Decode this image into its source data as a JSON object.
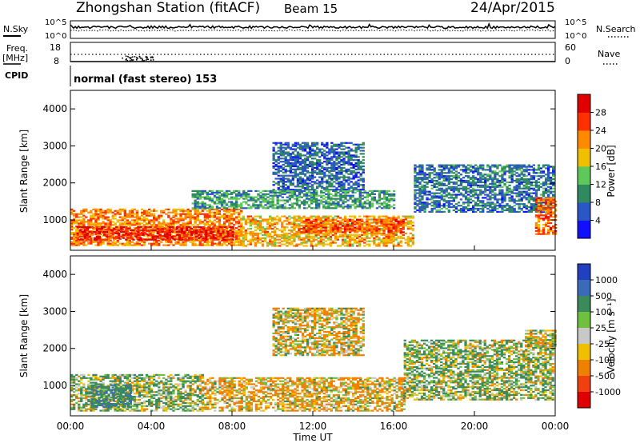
{
  "header": {
    "station": "Zhongshan Station (fitACF)",
    "beam": "Beam 15",
    "date": "24/Apr/2015"
  },
  "top_panels": {
    "nsky_label": "N.Sky",
    "nsearch_label": "N.Search",
    "freq_label_1": "Freq.",
    "freq_label_2": "[MHz]",
    "nave_label": "Nave",
    "cpid_label": "CPID",
    "cpid_value": "normal (fast stereo) 153",
    "noise_ticks_left": [
      "10^5",
      "10^0"
    ],
    "noise_ticks_right": [
      "10^5",
      "10^0"
    ],
    "freq_ticks": [
      "18",
      "8"
    ],
    "nave_ticks": [
      "60",
      "0"
    ]
  },
  "axes": {
    "ylabel": "Slant Range [km]",
    "xlabel": "Time UT",
    "xticks": [
      "00:00",
      "04:00",
      "08:00",
      "12:00",
      "16:00",
      "20:00",
      "00:00"
    ],
    "yticks": [
      "1000",
      "2000",
      "3000",
      "4000"
    ]
  },
  "power_scale": {
    "label": "Power [dB]",
    "ticks": [
      "4",
      "8",
      "12",
      "16",
      "20",
      "24",
      "28"
    ],
    "colors": [
      "#1010ff",
      "#2a56c6",
      "#2f8a5e",
      "#5ec85a",
      "#f0c000",
      "#ff8a00",
      "#ff3000",
      "#e00000"
    ]
  },
  "velocity_scale": {
    "label": "Velocity [m s⁻¹]",
    "ticks": [
      "1000",
      "500",
      "100",
      "25",
      "-25",
      "-100",
      "-500",
      "-1000"
    ],
    "colors": [
      "#2040c0",
      "#3a6ab8",
      "#3a8a5a",
      "#70c040",
      "#c8c8c8",
      "#f0c000",
      "#f08000",
      "#f04010",
      "#e00000"
    ]
  },
  "chart_data": [
    {
      "type": "heatmap",
      "title": "Power",
      "xlabel": "Time UT",
      "ylabel": "Slant Range [km]",
      "xlim": [
        0,
        24
      ],
      "ylim": [
        180,
        4500
      ],
      "colorbar": {
        "label": "Power [dB]",
        "range": [
          0,
          32
        ]
      },
      "regions": [
        {
          "t0": 0.0,
          "t1": 8.5,
          "r0": 300,
          "r1": 1300,
          "level": 22
        },
        {
          "t0": 0.3,
          "t1": 8.0,
          "r0": 450,
          "r1": 800,
          "level": 28
        },
        {
          "t0": 8.5,
          "t1": 17.0,
          "r0": 280,
          "r1": 1100,
          "level": 20
        },
        {
          "t0": 11.5,
          "t1": 16.5,
          "r0": 650,
          "r1": 1000,
          "level": 25
        },
        {
          "t0": 10.0,
          "t1": 14.5,
          "r0": 1800,
          "r1": 3100,
          "level": 7
        },
        {
          "t0": 6.0,
          "t1": 16.0,
          "r0": 1300,
          "r1": 1800,
          "level": 11
        },
        {
          "t0": 17.0,
          "t1": 23.9,
          "r0": 1200,
          "r1": 2500,
          "level": 8
        },
        {
          "t0": 23.0,
          "t1": 24.0,
          "r0": 600,
          "r1": 1600,
          "level": 24
        }
      ]
    },
    {
      "type": "heatmap",
      "title": "Velocity",
      "xlabel": "Time UT",
      "ylabel": "Slant Range [km]",
      "xlim": [
        0,
        24
      ],
      "ylim": [
        180,
        4500
      ],
      "colorbar": {
        "label": "Velocity [m s⁻¹]",
        "range": [
          -1000,
          1000
        ]
      },
      "regions": [
        {
          "t0": 0.0,
          "t1": 6.5,
          "r0": 300,
          "r1": 1300,
          "level": 80
        },
        {
          "t0": 1.0,
          "t1": 3.0,
          "r0": 400,
          "r1": 1000,
          "level": 400
        },
        {
          "t0": 6.5,
          "t1": 16.5,
          "r0": 300,
          "r1": 1200,
          "level": -120
        },
        {
          "t0": 10.0,
          "t1": 14.5,
          "r0": 1800,
          "r1": 3100,
          "level": -60
        },
        {
          "t0": 16.5,
          "t1": 23.9,
          "r0": 600,
          "r1": 2200,
          "level": 80
        },
        {
          "t0": 22.5,
          "t1": 24.0,
          "r0": 2000,
          "r1": 2500,
          "level": 0
        }
      ]
    }
  ]
}
